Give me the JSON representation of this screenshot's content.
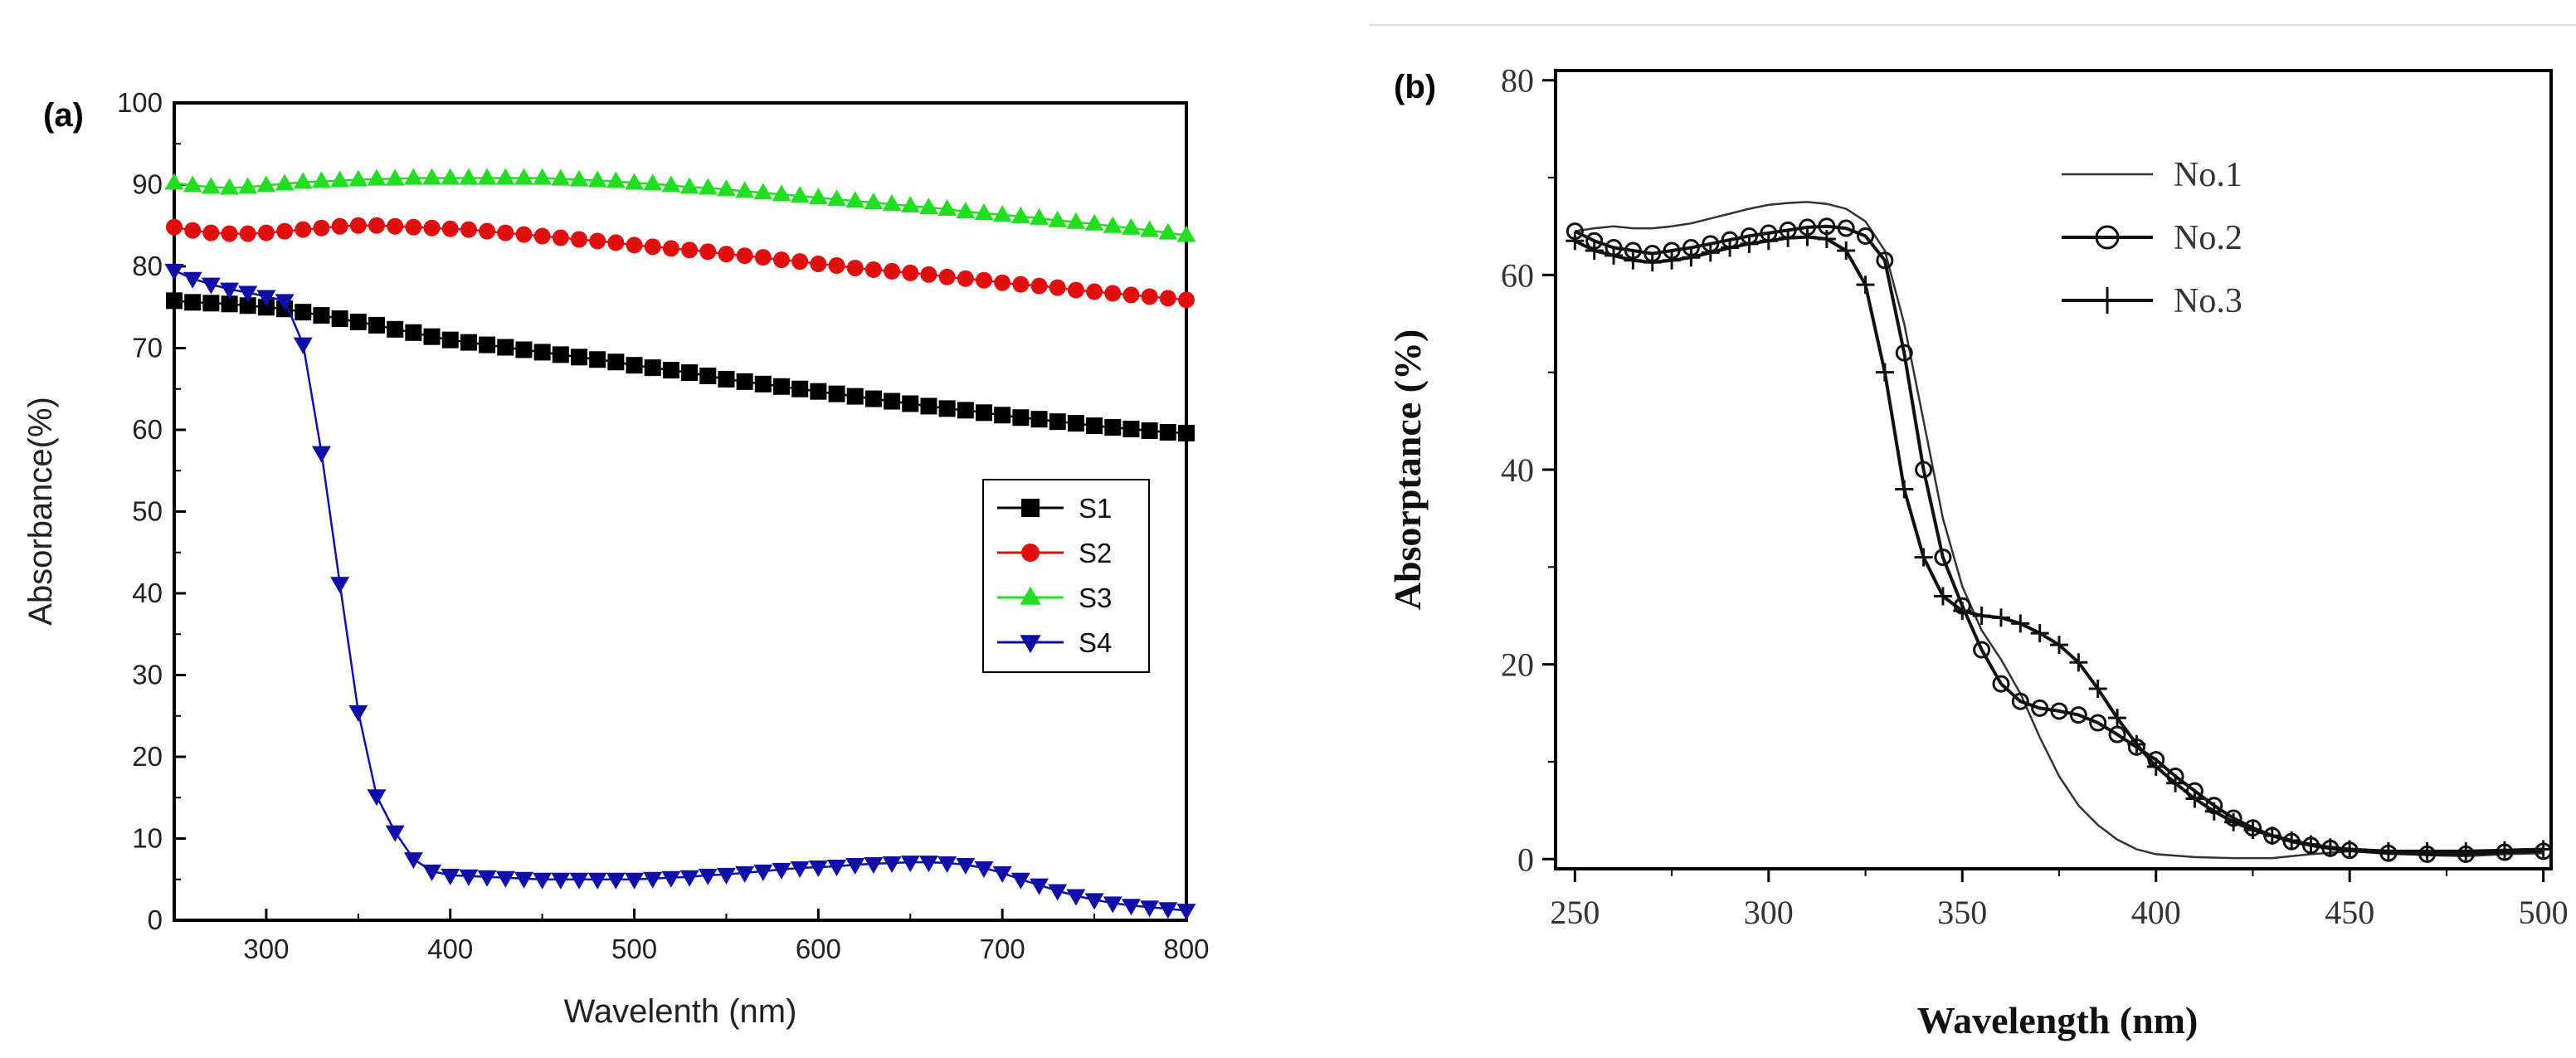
{
  "chart_data": [
    {
      "panel": "(a)",
      "type": "line",
      "xlabel": "Wavelenth (nm)",
      "ylabel": "Absorbance(%)",
      "xlim": [
        250,
        800
      ],
      "ylim": [
        0,
        100
      ],
      "xticks": [
        300,
        400,
        500,
        600,
        700,
        800
      ],
      "yticks": [
        0,
        10,
        20,
        30,
        40,
        50,
        60,
        70,
        80,
        90,
        100
      ],
      "legend_position": "center-right",
      "series": [
        {
          "name": "S1",
          "marker": "square",
          "color": "#000000",
          "x": [
            250,
            260,
            270,
            280,
            290,
            300,
            310,
            320,
            330,
            340,
            350,
            360,
            370,
            380,
            390,
            400,
            410,
            420,
            430,
            440,
            450,
            460,
            470,
            480,
            490,
            500,
            510,
            520,
            530,
            540,
            550,
            560,
            570,
            580,
            590,
            600,
            610,
            620,
            630,
            640,
            650,
            660,
            670,
            680,
            690,
            700,
            710,
            720,
            730,
            740,
            750,
            760,
            770,
            780,
            790,
            800
          ],
          "y": [
            75.8,
            75.6,
            75.5,
            75.4,
            75.2,
            75.0,
            74.8,
            74.4,
            74.0,
            73.6,
            73.2,
            72.8,
            72.3,
            71.9,
            71.4,
            71.0,
            70.7,
            70.4,
            70.1,
            69.8,
            69.5,
            69.2,
            68.9,
            68.6,
            68.3,
            67.9,
            67.6,
            67.3,
            67.0,
            66.6,
            66.2,
            65.9,
            65.6,
            65.3,
            65.0,
            64.7,
            64.4,
            64.1,
            63.8,
            63.5,
            63.2,
            62.9,
            62.6,
            62.4,
            62.1,
            61.8,
            61.5,
            61.3,
            61.0,
            60.8,
            60.5,
            60.3,
            60.1,
            59.9,
            59.7,
            59.6
          ]
        },
        {
          "name": "S2",
          "marker": "circle",
          "color": "#e01010",
          "x": [
            250,
            260,
            270,
            280,
            290,
            300,
            310,
            320,
            330,
            340,
            350,
            360,
            370,
            380,
            390,
            400,
            410,
            420,
            430,
            440,
            450,
            460,
            470,
            480,
            490,
            500,
            510,
            520,
            530,
            540,
            550,
            560,
            570,
            580,
            590,
            600,
            610,
            620,
            630,
            640,
            650,
            660,
            670,
            680,
            690,
            700,
            710,
            720,
            730,
            740,
            750,
            760,
            770,
            780,
            790,
            800
          ],
          "y": [
            84.8,
            84.4,
            84.1,
            84.0,
            84.0,
            84.1,
            84.3,
            84.5,
            84.7,
            84.9,
            85.0,
            85.0,
            84.9,
            84.8,
            84.7,
            84.6,
            84.5,
            84.3,
            84.1,
            83.9,
            83.7,
            83.5,
            83.3,
            83.1,
            82.9,
            82.6,
            82.4,
            82.2,
            82.0,
            81.8,
            81.5,
            81.3,
            81.1,
            80.8,
            80.6,
            80.3,
            80.1,
            79.8,
            79.6,
            79.4,
            79.2,
            79.0,
            78.7,
            78.5,
            78.3,
            78.0,
            77.8,
            77.6,
            77.4,
            77.1,
            76.9,
            76.7,
            76.5,
            76.3,
            76.1,
            75.9
          ]
        },
        {
          "name": "S3",
          "marker": "triangle-up",
          "color": "#22dd22",
          "x": [
            250,
            260,
            270,
            280,
            290,
            300,
            310,
            320,
            330,
            340,
            350,
            360,
            370,
            380,
            390,
            400,
            410,
            420,
            430,
            440,
            450,
            460,
            470,
            480,
            490,
            500,
            510,
            520,
            530,
            540,
            550,
            560,
            570,
            580,
            590,
            600,
            610,
            620,
            630,
            640,
            650,
            660,
            670,
            680,
            690,
            700,
            710,
            720,
            730,
            740,
            750,
            760,
            770,
            780,
            790,
            800
          ],
          "y": [
            90.2,
            89.9,
            89.7,
            89.6,
            89.7,
            89.9,
            90.1,
            90.3,
            90.4,
            90.5,
            90.6,
            90.7,
            90.7,
            90.8,
            90.8,
            90.8,
            90.8,
            90.8,
            90.8,
            90.8,
            90.8,
            90.7,
            90.6,
            90.5,
            90.4,
            90.2,
            90.1,
            89.9,
            89.7,
            89.6,
            89.4,
            89.2,
            89.0,
            88.8,
            88.6,
            88.4,
            88.2,
            88.0,
            87.8,
            87.6,
            87.4,
            87.2,
            87.0,
            86.7,
            86.5,
            86.3,
            86.1,
            85.9,
            85.6,
            85.4,
            85.2,
            84.9,
            84.7,
            84.4,
            84.1,
            83.8
          ]
        },
        {
          "name": "S4",
          "marker": "triangle-down",
          "color": "#1010a8",
          "x": [
            250,
            260,
            270,
            280,
            290,
            300,
            310,
            320,
            330,
            340,
            350,
            360,
            370,
            380,
            390,
            400,
            410,
            420,
            430,
            440,
            450,
            460,
            470,
            480,
            490,
            500,
            510,
            520,
            530,
            540,
            550,
            560,
            570,
            580,
            590,
            600,
            610,
            620,
            630,
            640,
            650,
            660,
            670,
            680,
            690,
            700,
            710,
            720,
            730,
            740,
            750,
            760,
            770,
            780,
            790,
            800
          ],
          "y": [
            79.5,
            78.5,
            77.8,
            77.2,
            76.8,
            76.3,
            75.8,
            70.5,
            57.2,
            41.2,
            25.5,
            15.2,
            10.8,
            7.5,
            6.0,
            5.5,
            5.4,
            5.3,
            5.2,
            5.1,
            5.0,
            5.0,
            5.0,
            5.0,
            5.0,
            5.0,
            5.1,
            5.2,
            5.3,
            5.5,
            5.6,
            5.8,
            6.0,
            6.2,
            6.4,
            6.5,
            6.6,
            6.8,
            6.9,
            7.0,
            7.1,
            7.1,
            7.0,
            6.8,
            6.4,
            5.8,
            5.0,
            4.3,
            3.6,
            3.0,
            2.5,
            2.1,
            1.8,
            1.6,
            1.4,
            1.2
          ]
        }
      ]
    },
    {
      "panel": "(b)",
      "type": "line",
      "xlabel": "Wavelength (nm)",
      "ylabel": "Absorptance (%)",
      "xlim": [
        245,
        502
      ],
      "ylim": [
        -1,
        81
      ],
      "xticks": [
        250,
        300,
        350,
        400,
        450,
        500
      ],
      "yticks": [
        0,
        20,
        40,
        60,
        80
      ],
      "legend_position": "top-right",
      "series": [
        {
          "name": "No.1",
          "marker": "none",
          "color": "#333333",
          "x": [
            250,
            255,
            260,
            265,
            270,
            275,
            280,
            285,
            290,
            295,
            300,
            305,
            310,
            315,
            320,
            325,
            330,
            335,
            340,
            345,
            350,
            355,
            360,
            365,
            370,
            375,
            380,
            385,
            390,
            395,
            400,
            410,
            420,
            430,
            440,
            450,
            460,
            470,
            480,
            490,
            500
          ],
          "y": [
            64.5,
            64.8,
            65.0,
            64.8,
            64.8,
            65.0,
            65.3,
            65.8,
            66.3,
            66.8,
            67.2,
            67.4,
            67.5,
            67.3,
            66.8,
            65.5,
            62.5,
            55,
            45,
            35,
            28,
            23.5,
            20.5,
            17,
            12.5,
            8.5,
            5.5,
            3.5,
            2,
            1,
            0.5,
            0.2,
            0.1,
            0.1,
            0.5,
            0.8,
            0.6,
            0.4,
            0.3,
            0.5,
            0.6
          ]
        },
        {
          "name": "No.2",
          "marker": "circle",
          "color": "#111111",
          "x": [
            250,
            255,
            260,
            265,
            270,
            275,
            280,
            285,
            290,
            295,
            300,
            305,
            310,
            315,
            320,
            325,
            330,
            335,
            340,
            345,
            350,
            355,
            360,
            365,
            370,
            375,
            380,
            385,
            390,
            395,
            400,
            405,
            410,
            415,
            420,
            425,
            430,
            435,
            440,
            445,
            450,
            460,
            470,
            480,
            490,
            500
          ],
          "y": [
            64.5,
            63.5,
            62.8,
            62.5,
            62.2,
            62.5,
            62.8,
            63.2,
            63.6,
            64.0,
            64.3,
            64.6,
            64.9,
            65.0,
            64.8,
            64.0,
            61.5,
            52,
            40,
            31,
            26,
            21.5,
            18,
            16.2,
            15.5,
            15.2,
            14.8,
            14.0,
            12.8,
            11.5,
            10.2,
            8.5,
            7.0,
            5.5,
            4.2,
            3.2,
            2.4,
            1.8,
            1.4,
            1.1,
            0.9,
            0.6,
            0.5,
            0.5,
            0.7,
            0.8
          ]
        },
        {
          "name": "No.3",
          "marker": "plus",
          "color": "#111111",
          "x": [
            250,
            255,
            260,
            265,
            270,
            275,
            280,
            285,
            290,
            295,
            300,
            305,
            310,
            315,
            320,
            325,
            330,
            335,
            340,
            345,
            350,
            355,
            360,
            365,
            370,
            375,
            380,
            385,
            390,
            395,
            400,
            405,
            410,
            415,
            420,
            425,
            430,
            435,
            440,
            445,
            450,
            460,
            470,
            480,
            490,
            500
          ],
          "y": [
            63.5,
            62.5,
            62.0,
            61.5,
            61.3,
            61.5,
            61.8,
            62.3,
            62.8,
            63.2,
            63.5,
            63.8,
            63.9,
            63.7,
            62.5,
            59,
            50,
            38,
            31,
            27,
            25.5,
            25,
            24.8,
            24.2,
            23.2,
            22,
            20.2,
            17.5,
            14.5,
            11.8,
            9.5,
            7.8,
            6.2,
            4.9,
            3.8,
            3.0,
            2.4,
            1.9,
            1.5,
            1.2,
            1.0,
            0.8,
            0.8,
            0.8,
            0.9,
            1.0
          ]
        }
      ]
    }
  ]
}
